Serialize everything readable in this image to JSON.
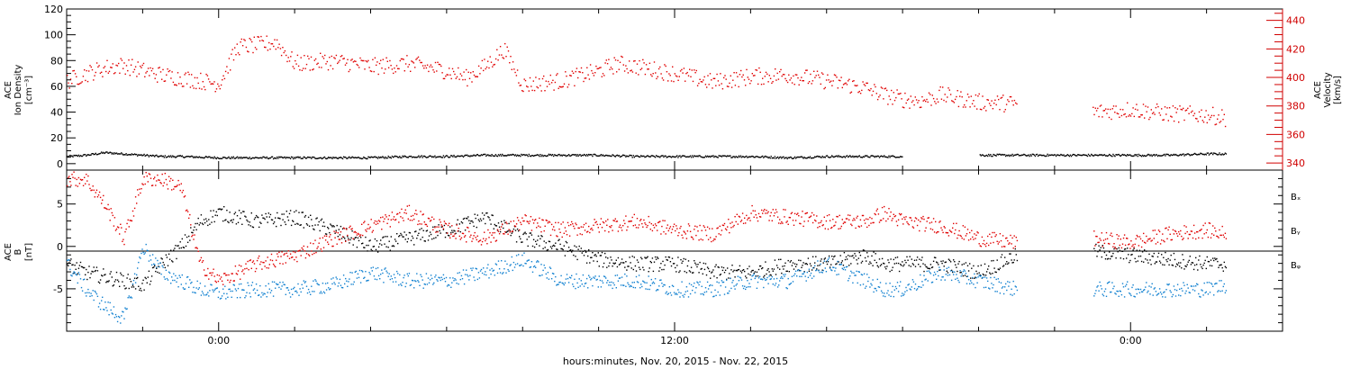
{
  "chart_data": [
    {
      "type": "scatter",
      "panel": "plasma",
      "ylabel_left": [
        "ACE",
        "Ion Density",
        "[cm⁻³]"
      ],
      "ylabel_right": [
        "ACE",
        "Velocity",
        "[km/s]"
      ],
      "ylim_left": [
        -5,
        120
      ],
      "yticks_left": [
        0,
        20,
        40,
        60,
        80,
        100,
        120
      ],
      "ylim_right": [
        335,
        448
      ],
      "yticks_right": [
        340,
        360,
        380,
        400,
        420,
        440
      ],
      "colors": {
        "density": "#000000",
        "velocity": "#e00000"
      },
      "series": [
        {
          "name": "Ion Density",
          "axis": "left",
          "color": "#000000",
          "x_hours": [
            -4,
            -3.5,
            -3,
            -2.5,
            -2,
            -1.5,
            -1,
            0,
            1,
            2,
            3,
            4,
            5,
            6,
            7,
            8,
            9,
            10,
            11,
            12,
            13,
            14,
            15,
            16,
            17,
            18,
            19,
            20,
            21,
            22,
            23,
            24,
            25,
            26,
            26.5
          ],
          "y": [
            6,
            7,
            9,
            8,
            7,
            6,
            6,
            5,
            5,
            5,
            5,
            5,
            6,
            6,
            7,
            7,
            7,
            7,
            6,
            6,
            6,
            6,
            5,
            6,
            6,
            6,
            null,
            7,
            7,
            7,
            7,
            7,
            7,
            8,
            8
          ]
        },
        {
          "name": "Velocity",
          "axis": "right",
          "color": "#e00000",
          "x_hours": [
            -4,
            -3.5,
            -3,
            -2.5,
            -2,
            -1.5,
            -1,
            0,
            0.5,
            1,
            1.5,
            2,
            3,
            4,
            5,
            6,
            6.5,
            7,
            7.5,
            8,
            9,
            10,
            10.5,
            11,
            12,
            13,
            14,
            15,
            16,
            17,
            17.5,
            18,
            18.5,
            19,
            20,
            21,
            22,
            23,
            24,
            25,
            26,
            26.5
          ],
          "y": [
            398,
            403,
            407,
            409,
            405,
            402,
            400,
            396,
            422,
            423,
            425,
            410,
            412,
            408,
            410,
            405,
            400,
            408,
            420,
            395,
            398,
            405,
            410,
            408,
            403,
            397,
            401,
            402,
            398,
            393,
            388,
            385,
            384,
            388,
            383,
            382,
            null,
            376,
            378,
            375,
            374,
            372
          ]
        }
      ]
    },
    {
      "type": "scatter",
      "panel": "magnetic",
      "ylabel": [
        "ACE",
        "B",
        "[nT]"
      ],
      "ylim": [
        -10,
        9
      ],
      "yticks": [
        -5,
        0,
        5
      ],
      "zero_line": true,
      "legend": [
        "Bₓ",
        "Bᵧ",
        "Bᵩ"
      ],
      "legend_position": "right",
      "series": [
        {
          "name": "Bx",
          "color": "#000000",
          "x_hours": [
            -4,
            -3.5,
            -3,
            -2.5,
            -2,
            -1.5,
            -1,
            -0.5,
            0,
            1,
            2,
            3,
            4,
            5,
            6,
            7,
            8,
            9,
            10,
            11,
            12,
            13,
            14,
            15,
            16,
            17,
            17.5,
            18,
            19,
            20,
            21,
            22,
            23,
            24,
            25,
            26,
            26.5
          ],
          "y": [
            -2,
            -3,
            -3.5,
            -4,
            -4.5,
            -2,
            0,
            3,
            4,
            3,
            3.5,
            2,
            0,
            1,
            2,
            3.5,
            1,
            0,
            -1.5,
            -2,
            -2,
            -3,
            -3,
            -2,
            -2,
            -1,
            -2,
            -2,
            -2,
            -3,
            -1,
            null,
            -0.5,
            -1,
            -1.5,
            -2,
            -2
          ]
        },
        {
          "name": "By",
          "color": "#1080d0",
          "x_hours": [
            -4,
            -3.5,
            -3,
            -2.5,
            -2,
            -1.5,
            -1,
            -0.5,
            0,
            1,
            2,
            3,
            4,
            5,
            6,
            7,
            8,
            9,
            10,
            11,
            12,
            13,
            14,
            15,
            16,
            17,
            17.5,
            18,
            19,
            20,
            21,
            22,
            23,
            24,
            25,
            26,
            26.5
          ],
          "y": [
            -2,
            -5,
            -7,
            -8.5,
            0,
            -3,
            -4,
            -5,
            -5.5,
            -5,
            -5,
            -4.5,
            -3,
            -4,
            -4,
            -3,
            -1.5,
            -4,
            -4,
            -4,
            -5,
            -5,
            -4,
            -4,
            -2,
            -4,
            -5,
            -5,
            -3,
            -4,
            -5,
            null,
            -5,
            -5,
            -5,
            -5,
            -4.5
          ]
        },
        {
          "name": "Bz",
          "color": "#e00000",
          "x_hours": [
            -4,
            -3.5,
            -3,
            -2.5,
            -2,
            -1.5,
            -1,
            -0.5,
            0,
            1,
            2,
            3,
            4,
            5,
            6,
            7,
            8,
            9,
            10,
            11,
            12,
            13,
            14,
            15,
            16,
            17,
            17.5,
            18,
            19,
            20,
            21,
            22,
            23,
            24,
            25,
            26,
            26.5
          ],
          "y": [
            8,
            8,
            5,
            1,
            8,
            8,
            7,
            -2,
            -4,
            -2,
            -1,
            1,
            2.5,
            4,
            2,
            1,
            3,
            2,
            2.5,
            3,
            2,
            1.5,
            4,
            3.5,
            3,
            3,
            4,
            3,
            2.5,
            1,
            0.5,
            null,
            1,
            0.5,
            1.5,
            2,
            1.5
          ]
        }
      ]
    }
  ],
  "x_axis": {
    "xlim_hours": [
      -4,
      28
    ],
    "tick_labels": [
      {
        "h": 0,
        "label": "0:00"
      },
      {
        "h": 12,
        "label": "12:00"
      },
      {
        "h": 24,
        "label": "0:00"
      }
    ],
    "xlabel": "hours:minutes, Nov. 20, 2015 - Nov. 22, 2015"
  }
}
